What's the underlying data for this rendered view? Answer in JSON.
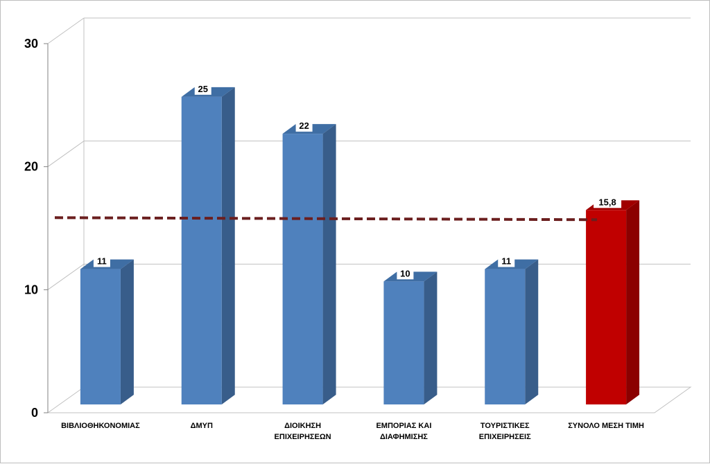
{
  "chart_data": {
    "type": "bar",
    "categories": [
      [
        "ΒΙΒΛΙΟΘΗΚΟΝΟΜΙΑΣ"
      ],
      [
        "ΔΜΥΠ"
      ],
      [
        "ΔΙΟΙΚΗΣΗ",
        "ΕΠΙΧΕΙΡΗΣΕΩΝ"
      ],
      [
        "ΕΜΠΟΡΙΑΣ ΚΑΙ",
        "ΔΙΑΦΗΜΙΣΗΣ"
      ],
      [
        "ΤΟΥΡΙΣΤΙΚΕΣ",
        "ΕΠΙΧΕΙΡΗΣΕΙΣ"
      ],
      [
        "ΣΥΝΟΛΟ ΜΕΣΗ ΤΙΜΗ"
      ]
    ],
    "values": [
      11,
      25,
      22,
      10,
      11,
      15.8
    ],
    "data_labels": [
      "11",
      "25",
      "22",
      "10",
      "11",
      "15,8"
    ],
    "ylim": [
      0,
      30
    ],
    "yticks": [
      "0",
      "10",
      "20",
      "30"
    ],
    "reference_line": {
      "value": 15.8,
      "style": "dashed",
      "color": "#6b1f1f"
    },
    "grid": true,
    "style_3d": true,
    "colors": {
      "bar_front": "#4f81bd",
      "bar_side": "#385d8a",
      "bar_top": "#3f6ea4",
      "highlight_front": "#c00000",
      "highlight_side": "#8b0000",
      "highlight_top": "#a00000",
      "grid": "#c0c0c0",
      "axis": "#808080"
    },
    "highlight_index": 5,
    "title": "",
    "xlabel": "",
    "ylabel": ""
  }
}
